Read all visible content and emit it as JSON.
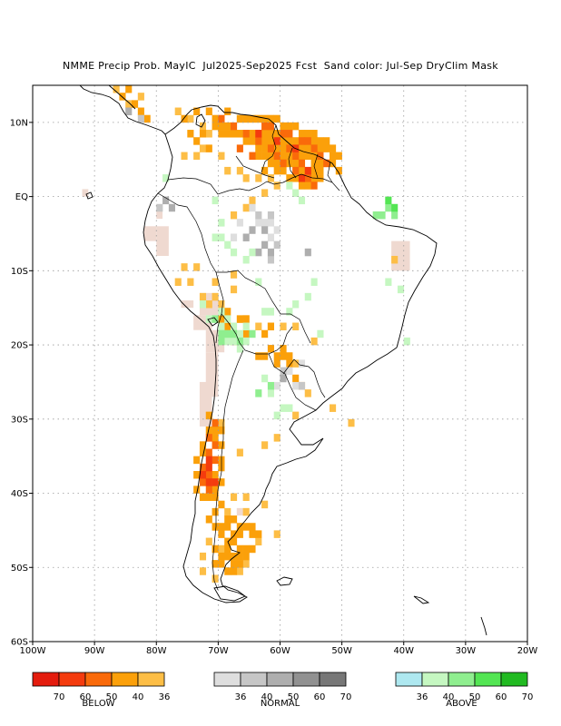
{
  "title": "NMME Precip Prob. MayIC  Jul2025-Sep2025 Fcst  Sand color: Jul-Sep DryClim Mask",
  "map": {
    "lon_range": [
      -100,
      -20
    ],
    "lat_range": [
      -60,
      15
    ],
    "lat_ticks": [
      "10N",
      "EQ",
      "10S",
      "20S",
      "30S",
      "40S",
      "50S",
      "60S"
    ],
    "lon_ticks": [
      "100W",
      "90W",
      "80W",
      "70W",
      "60W",
      "50W",
      "40W",
      "30W",
      "20W"
    ],
    "gridlines": true,
    "land_fill": "#ffffff",
    "coast_color": "#000000",
    "grid_color": "#9a9a9a",
    "dry_mask_color": "#efd9d0",
    "cells": {
      "below_50": [
        [
          -63,
          9
        ],
        [
          -62,
          9
        ],
        [
          -60,
          8
        ],
        [
          -59,
          8
        ],
        [
          -57,
          7
        ],
        [
          -56,
          7
        ],
        [
          -55,
          6
        ],
        [
          -54,
          5
        ],
        [
          -53,
          4
        ],
        [
          -70,
          10
        ],
        [
          -68,
          9
        ],
        [
          -66,
          8
        ],
        [
          -64,
          7
        ],
        [
          -62,
          6
        ],
        [
          -65,
          5
        ],
        [
          -60,
          4
        ],
        [
          -58,
          3
        ],
        [
          -56,
          2
        ],
        [
          -55,
          1
        ],
        [
          -67,
          6
        ],
        [
          -58,
          5
        ],
        [
          -59,
          6
        ],
        [
          -61,
          5
        ],
        [
          -57,
          4
        ],
        [
          -71,
          -31
        ],
        [
          -72,
          -33
        ],
        [
          -72,
          -35
        ],
        [
          -73,
          -37
        ],
        [
          -72,
          -38
        ],
        [
          -73,
          -39
        ],
        [
          -72,
          -40
        ],
        [
          -71,
          -36
        ],
        [
          -71,
          -34
        ]
      ],
      "below_60": [
        [
          -64,
          8
        ],
        [
          -61,
          7
        ],
        [
          -58,
          6
        ],
        [
          -57,
          2
        ],
        [
          -56,
          3
        ],
        [
          -72,
          -36
        ],
        [
          -73,
          -38
        ],
        [
          -72,
          -37
        ],
        [
          -71,
          -39
        ],
        [
          -72,
          -39
        ]
      ],
      "below_40": [
        [
          -86,
          13
        ],
        [
          -84,
          12
        ],
        [
          -85,
          14
        ],
        [
          -83,
          11
        ],
        [
          -82,
          10
        ],
        [
          -76,
          10
        ],
        [
          -74,
          11
        ],
        [
          -72,
          11
        ],
        [
          -71,
          10
        ],
        [
          -69,
          11
        ],
        [
          -67,
          10
        ],
        [
          -66,
          10
        ],
        [
          -65,
          10
        ],
        [
          -64,
          10
        ],
        [
          -63,
          10
        ],
        [
          -62,
          10
        ],
        [
          -61,
          10
        ],
        [
          -60,
          9
        ],
        [
          -59,
          9
        ],
        [
          -58,
          9
        ],
        [
          -57,
          8
        ],
        [
          -56,
          8
        ],
        [
          -55,
          8
        ],
        [
          -54,
          7
        ],
        [
          -53,
          7
        ],
        [
          -52,
          6
        ],
        [
          -51,
          5
        ],
        [
          -54,
          6
        ],
        [
          -53,
          6
        ],
        [
          -52,
          5
        ],
        [
          -52,
          4
        ],
        [
          -51,
          3
        ],
        [
          -71,
          9
        ],
        [
          -70,
          9
        ],
        [
          -69,
          9
        ],
        [
          -68,
          8
        ],
        [
          -67,
          8
        ],
        [
          -65,
          8
        ],
        [
          -63,
          8
        ],
        [
          -62,
          8
        ],
        [
          -61,
          8
        ],
        [
          -60,
          7
        ],
        [
          -59,
          7
        ],
        [
          -58,
          7
        ],
        [
          -55,
          7
        ],
        [
          -70,
          8
        ],
        [
          -69,
          8
        ],
        [
          -66,
          7
        ],
        [
          -65,
          7
        ],
        [
          -63,
          7
        ],
        [
          -62,
          7
        ],
        [
          -64,
          6
        ],
        [
          -63,
          6
        ],
        [
          -61,
          6
        ],
        [
          -60,
          6
        ],
        [
          -57,
          6
        ],
        [
          -56,
          6
        ],
        [
          -55,
          5
        ],
        [
          -54,
          4
        ],
        [
          -63,
          5
        ],
        [
          -62,
          5
        ],
        [
          -60,
          5
        ],
        [
          -59,
          5
        ],
        [
          -57,
          5
        ],
        [
          -56,
          5
        ],
        [
          -64,
          5
        ],
        [
          -62,
          4
        ],
        [
          -61,
          4
        ],
        [
          -59,
          4
        ],
        [
          -58,
          4
        ],
        [
          -55,
          4
        ],
        [
          -57,
          3
        ],
        [
          -60,
          3
        ],
        [
          -61,
          3
        ],
        [
          -63,
          3
        ],
        [
          -54,
          3
        ],
        [
          -55,
          3
        ],
        [
          -58,
          2
        ],
        [
          -59,
          2
        ],
        [
          -55,
          2
        ],
        [
          -56,
          1
        ],
        [
          -57,
          1
        ],
        [
          -54,
          2
        ],
        [
          -72,
          6
        ],
        [
          -74,
          7
        ],
        [
          -73,
          8
        ],
        [
          -75,
          8
        ],
        [
          -72,
          -30
        ],
        [
          -71,
          -32
        ],
        [
          -72,
          -32
        ],
        [
          -71,
          -33
        ],
        [
          -70,
          -32
        ],
        [
          -70,
          -34
        ],
        [
          -73,
          -34
        ],
        [
          -73,
          -35
        ],
        [
          -74,
          -36
        ],
        [
          -70,
          -36
        ],
        [
          -70,
          -37
        ],
        [
          -74,
          -38
        ],
        [
          -71,
          -38
        ],
        [
          -70,
          -39
        ],
        [
          -74,
          -40
        ],
        [
          -71,
          -40
        ],
        [
          -71,
          -41
        ],
        [
          -72,
          -41
        ],
        [
          -73,
          -41
        ],
        [
          -70,
          -42
        ],
        [
          -71,
          -43
        ],
        [
          -72,
          -44
        ],
        [
          -69,
          -44
        ],
        [
          -68,
          -44
        ],
        [
          -71,
          -45
        ],
        [
          -70,
          -45
        ],
        [
          -69,
          -45
        ],
        [
          -67,
          -45
        ],
        [
          -66,
          -45
        ],
        [
          -65,
          -45
        ],
        [
          -70,
          -46
        ],
        [
          -68,
          -46
        ],
        [
          -67,
          -46
        ],
        [
          -65,
          -46
        ],
        [
          -64,
          -46
        ],
        [
          -69,
          -47
        ],
        [
          -68,
          -47
        ],
        [
          -71,
          -48
        ],
        [
          -69,
          -48
        ],
        [
          -67,
          -48
        ],
        [
          -66,
          -48
        ],
        [
          -65,
          -48
        ],
        [
          -70,
          -49
        ],
        [
          -69,
          -49
        ],
        [
          -68,
          -49
        ],
        [
          -67,
          -49
        ],
        [
          -66,
          -49
        ],
        [
          -71,
          -50
        ],
        [
          -70,
          -50
        ],
        [
          -68,
          -50
        ],
        [
          -67,
          -50
        ],
        [
          -69,
          -51
        ],
        [
          -68,
          -51
        ],
        [
          -63,
          -22
        ],
        [
          -64,
          -22
        ],
        [
          -61,
          -22
        ],
        [
          -60,
          -22
        ],
        [
          -59,
          -22
        ],
        [
          -62,
          -21
        ],
        [
          -61,
          -23
        ],
        [
          -59,
          -23
        ],
        [
          -57,
          -26
        ],
        [
          -58,
          -25
        ],
        [
          -69,
          -18
        ],
        [
          -70,
          -17
        ],
        [
          -69,
          -16
        ],
        [
          -67,
          -17
        ],
        [
          -66,
          -19
        ],
        [
          -68,
          -20
        ],
        [
          -63,
          -19
        ],
        [
          -60,
          -21
        ],
        [
          -62,
          -18
        ],
        [
          -66,
          -17
        ]
      ],
      "below_36": [
        [
          -87,
          14
        ],
        [
          -85,
          12
        ],
        [
          -83,
          13
        ],
        [
          -77,
          11
        ],
        [
          -75,
          10
        ],
        [
          -73,
          9
        ],
        [
          -72,
          8
        ],
        [
          -73,
          6
        ],
        [
          -70,
          5
        ],
        [
          -69,
          3
        ],
        [
          -67,
          3
        ],
        [
          -66,
          2
        ],
        [
          -64,
          2
        ],
        [
          -62,
          2
        ],
        [
          -61,
          1
        ],
        [
          -63,
          0
        ],
        [
          -65,
          -1
        ],
        [
          -66,
          -2
        ],
        [
          -68,
          -3
        ],
        [
          -76,
          5
        ],
        [
          -74,
          5
        ],
        [
          -76,
          -10
        ],
        [
          -74,
          -10
        ],
        [
          -77,
          -12
        ],
        [
          -73,
          -14
        ],
        [
          -71,
          -14
        ],
        [
          -72,
          -15
        ],
        [
          -75,
          -12
        ],
        [
          -68,
          -13
        ],
        [
          -66,
          -17
        ],
        [
          -64,
          -18
        ],
        [
          -62,
          -18
        ],
        [
          -60,
          -18
        ],
        [
          -58,
          -18
        ],
        [
          -55,
          -20
        ],
        [
          -58,
          -23
        ],
        [
          -56,
          -27
        ],
        [
          -52,
          -29
        ],
        [
          -49,
          -31
        ],
        [
          -58,
          -30
        ],
        [
          -61,
          -33
        ],
        [
          -63,
          -34
        ],
        [
          -66,
          -41
        ],
        [
          -68,
          -41
        ],
        [
          -70,
          -31
        ],
        [
          -67,
          -35
        ],
        [
          -69,
          -43
        ],
        [
          -70,
          -48
        ],
        [
          -66,
          -50
        ],
        [
          -64,
          -47
        ],
        [
          -61,
          -46
        ],
        [
          -63,
          -42
        ],
        [
          -66,
          -43
        ],
        [
          -72,
          -47
        ],
        [
          -73,
          -49
        ],
        [
          -73,
          -51
        ],
        [
          -71,
          -52
        ],
        [
          -67,
          -51
        ],
        [
          -42,
          -9
        ],
        [
          -68,
          -11
        ],
        [
          -71,
          -12
        ],
        [
          -70,
          -15
        ]
      ],
      "normal_50": [
        [
          -85,
          11
        ],
        [
          -65,
          -5
        ],
        [
          -66,
          -6
        ],
        [
          -63,
          -5
        ],
        [
          -63,
          -7
        ],
        [
          -62,
          -8
        ],
        [
          -64,
          -8
        ],
        [
          -56,
          -8
        ],
        [
          -60,
          -25
        ],
        [
          -79,
          -1
        ],
        [
          -78,
          -2
        ]
      ],
      "normal_40": [
        [
          -62,
          -3
        ],
        [
          -64,
          -3
        ],
        [
          -61,
          -7
        ],
        [
          -62,
          -9
        ],
        [
          -60,
          -24
        ],
        [
          -57,
          -26
        ],
        [
          -83,
          10
        ],
        [
          -80,
          -2
        ]
      ],
      "normal_36": [
        [
          -68,
          -6
        ],
        [
          -67,
          -4
        ],
        [
          -65,
          -2
        ],
        [
          -64,
          -4
        ],
        [
          -63,
          -4
        ],
        [
          -62,
          -4
        ],
        [
          -61,
          -5
        ],
        [
          -62,
          -6
        ],
        [
          -57,
          -23
        ],
        [
          -58,
          -26
        ],
        [
          -59,
          -24
        ],
        [
          -61,
          -26
        ]
      ],
      "above_40": [
        [
          -79,
          2
        ],
        [
          -71,
          -1
        ],
        [
          -70,
          -4
        ],
        [
          -71,
          -6
        ],
        [
          -70,
          -6
        ],
        [
          -68,
          -8
        ],
        [
          -66,
          -9
        ],
        [
          -65,
          -8
        ],
        [
          -69,
          -7
        ],
        [
          -73,
          -15
        ],
        [
          -72,
          -17
        ],
        [
          -70,
          -18
        ],
        [
          -68,
          -18
        ],
        [
          -67,
          -19
        ],
        [
          -66,
          -18
        ],
        [
          -67,
          -21
        ],
        [
          -63,
          -16
        ],
        [
          -62,
          -16
        ],
        [
          -59,
          -16
        ],
        [
          -58,
          -15
        ],
        [
          -54,
          -19
        ],
        [
          -63,
          -25
        ],
        [
          -62,
          -27
        ],
        [
          -60,
          -29
        ],
        [
          -59,
          -29
        ],
        [
          -61,
          -30
        ],
        [
          -57,
          -1
        ],
        [
          -58,
          0
        ],
        [
          -59,
          1
        ],
        [
          -55,
          -12
        ],
        [
          -56,
          -14
        ],
        [
          -43,
          -12
        ],
        [
          -41,
          -13
        ],
        [
          -40,
          -20
        ],
        [
          -64,
          -12
        ],
        [
          -66,
          -20
        ],
        [
          -68,
          -20
        ],
        [
          -69,
          -20
        ],
        [
          -69,
          -17
        ],
        [
          -70,
          -16
        ]
      ],
      "above_50": [
        [
          -43,
          -2
        ],
        [
          -45,
          -3
        ],
        [
          -44,
          -3
        ],
        [
          -42,
          -3
        ],
        [
          -70,
          -19
        ],
        [
          -69,
          -19
        ],
        [
          -68,
          -19
        ],
        [
          -67,
          -20
        ],
        [
          -64,
          -27
        ],
        [
          -62,
          -26
        ],
        [
          -71,
          -17
        ],
        [
          -70,
          -20
        ],
        [
          -65,
          -19
        ]
      ],
      "above_60": [
        [
          -43,
          -1
        ],
        [
          -42,
          -2
        ]
      ],
      "dry_mask_boxes": [
        [
          -72,
          -21,
          -70,
          -27
        ],
        [
          -73,
          -25,
          -71,
          -31
        ],
        [
          -72,
          -18,
          -69,
          -21
        ],
        [
          -74,
          -16,
          -71,
          -18
        ],
        [
          -42,
          -6,
          -39,
          -10
        ],
        [
          -80,
          -4,
          -78,
          -8
        ],
        [
          -73,
          -13,
          -70,
          -16
        ],
        [
          -82,
          -4,
          -80,
          -6
        ],
        [
          -76,
          -14,
          -74,
          -15
        ],
        [
          -92,
          1,
          -91,
          0
        ],
        [
          -80,
          -2,
          -79,
          -3
        ],
        [
          -67,
          -42,
          -65,
          -43
        ]
      ]
    }
  },
  "legend": {
    "below": {
      "caption": "BELOW",
      "ticks": [
        "70",
        "60",
        "50",
        "40",
        "36"
      ],
      "colors": [
        "#e41c0e",
        "#f43b0e",
        "#fa6a0a",
        "#fba00a",
        "#fdbe46"
      ]
    },
    "normal": {
      "caption": "NORMAL",
      "ticks": [
        "36",
        "40",
        "50",
        "60",
        "70"
      ],
      "colors": [
        "#dedede",
        "#c6c6c6",
        "#aeaeae",
        "#919191",
        "#777777"
      ]
    },
    "above": {
      "caption": "ABOVE",
      "ticks": [
        "36",
        "40",
        "50",
        "60",
        "70"
      ],
      "colors": [
        "#aee8f0",
        "#c5f7c1",
        "#8fee8f",
        "#53e553",
        "#21ba21"
      ]
    }
  }
}
